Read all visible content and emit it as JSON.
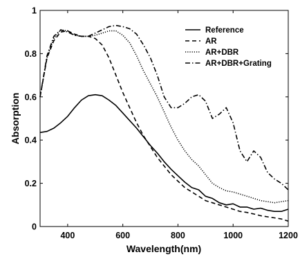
{
  "chart_data": {
    "type": "line",
    "title": "",
    "xlabel": "Wavelength(nm)",
    "ylabel": "Absorption",
    "xlim": [
      300,
      1200
    ],
    "ylim": [
      0,
      1
    ],
    "xticks": [
      400,
      600,
      800,
      1000,
      1200
    ],
    "yticks": [
      0,
      0.2,
      0.4,
      0.6,
      0.8,
      1
    ],
    "legend_position": "top-right",
    "grid": false,
    "series": [
      {
        "name": "Reference",
        "style": "solid",
        "color": "#000000",
        "x": [
          300,
          325,
          350,
          375,
          400,
          425,
          450,
          475,
          500,
          525,
          550,
          575,
          600,
          625,
          650,
          675,
          700,
          725,
          750,
          775,
          800,
          825,
          850,
          875,
          900,
          925,
          950,
          975,
          1000,
          1025,
          1050,
          1075,
          1100,
          1125,
          1150,
          1175,
          1200
        ],
        "y": [
          0.435,
          0.44,
          0.455,
          0.48,
          0.51,
          0.55,
          0.585,
          0.605,
          0.61,
          0.605,
          0.585,
          0.56,
          0.525,
          0.49,
          0.455,
          0.415,
          0.375,
          0.34,
          0.3,
          0.265,
          0.235,
          0.205,
          0.18,
          0.17,
          0.14,
          0.13,
          0.11,
          0.1,
          0.105,
          0.09,
          0.09,
          0.08,
          0.085,
          0.075,
          0.07,
          0.07,
          0.08
        ]
      },
      {
        "name": "AR",
        "style": "dashed",
        "color": "#000000",
        "x": [
          300,
          325,
          350,
          375,
          400,
          425,
          450,
          475,
          500,
          525,
          550,
          575,
          600,
          625,
          650,
          675,
          700,
          725,
          750,
          775,
          800,
          825,
          850,
          875,
          900,
          925,
          950,
          975,
          1000,
          1025,
          1050,
          1075,
          1100,
          1125,
          1150,
          1175,
          1200
        ],
        "y": [
          0.6,
          0.78,
          0.86,
          0.9,
          0.905,
          0.89,
          0.88,
          0.88,
          0.87,
          0.84,
          0.78,
          0.7,
          0.62,
          0.55,
          0.48,
          0.42,
          0.37,
          0.32,
          0.28,
          0.24,
          0.21,
          0.18,
          0.16,
          0.14,
          0.12,
          0.11,
          0.1,
          0.09,
          0.08,
          0.07,
          0.065,
          0.058,
          0.05,
          0.045,
          0.04,
          0.035,
          0.025
        ]
      },
      {
        "name": "AR+DBR",
        "style": "dotted",
        "color": "#000000",
        "x": [
          300,
          325,
          350,
          375,
          400,
          425,
          450,
          475,
          500,
          525,
          550,
          575,
          600,
          625,
          650,
          675,
          700,
          725,
          750,
          775,
          800,
          825,
          850,
          875,
          900,
          925,
          950,
          975,
          1000,
          1025,
          1050,
          1075,
          1100,
          1125,
          1150,
          1175,
          1200
        ],
        "y": [
          0.6,
          0.78,
          0.87,
          0.91,
          0.905,
          0.885,
          0.88,
          0.88,
          0.885,
          0.895,
          0.905,
          0.905,
          0.885,
          0.85,
          0.79,
          0.72,
          0.66,
          0.6,
          0.53,
          0.46,
          0.4,
          0.35,
          0.31,
          0.28,
          0.24,
          0.2,
          0.18,
          0.165,
          0.16,
          0.15,
          0.14,
          0.13,
          0.12,
          0.115,
          0.11,
          0.115,
          0.12
        ]
      },
      {
        "name": "AR+DBR+Grating",
        "style": "dashdot",
        "color": "#000000",
        "x": [
          300,
          325,
          350,
          375,
          400,
          425,
          450,
          475,
          500,
          525,
          550,
          575,
          600,
          625,
          650,
          675,
          700,
          725,
          750,
          775,
          800,
          825,
          850,
          875,
          900,
          925,
          950,
          975,
          1000,
          1025,
          1050,
          1075,
          1100,
          1125,
          1150,
          1175,
          1200
        ],
        "y": [
          0.6,
          0.79,
          0.88,
          0.91,
          0.9,
          0.885,
          0.88,
          0.88,
          0.895,
          0.91,
          0.925,
          0.93,
          0.925,
          0.915,
          0.89,
          0.84,
          0.78,
          0.7,
          0.6,
          0.55,
          0.55,
          0.57,
          0.6,
          0.61,
          0.58,
          0.5,
          0.52,
          0.55,
          0.48,
          0.35,
          0.3,
          0.35,
          0.32,
          0.25,
          0.22,
          0.2,
          0.17
        ]
      }
    ]
  }
}
